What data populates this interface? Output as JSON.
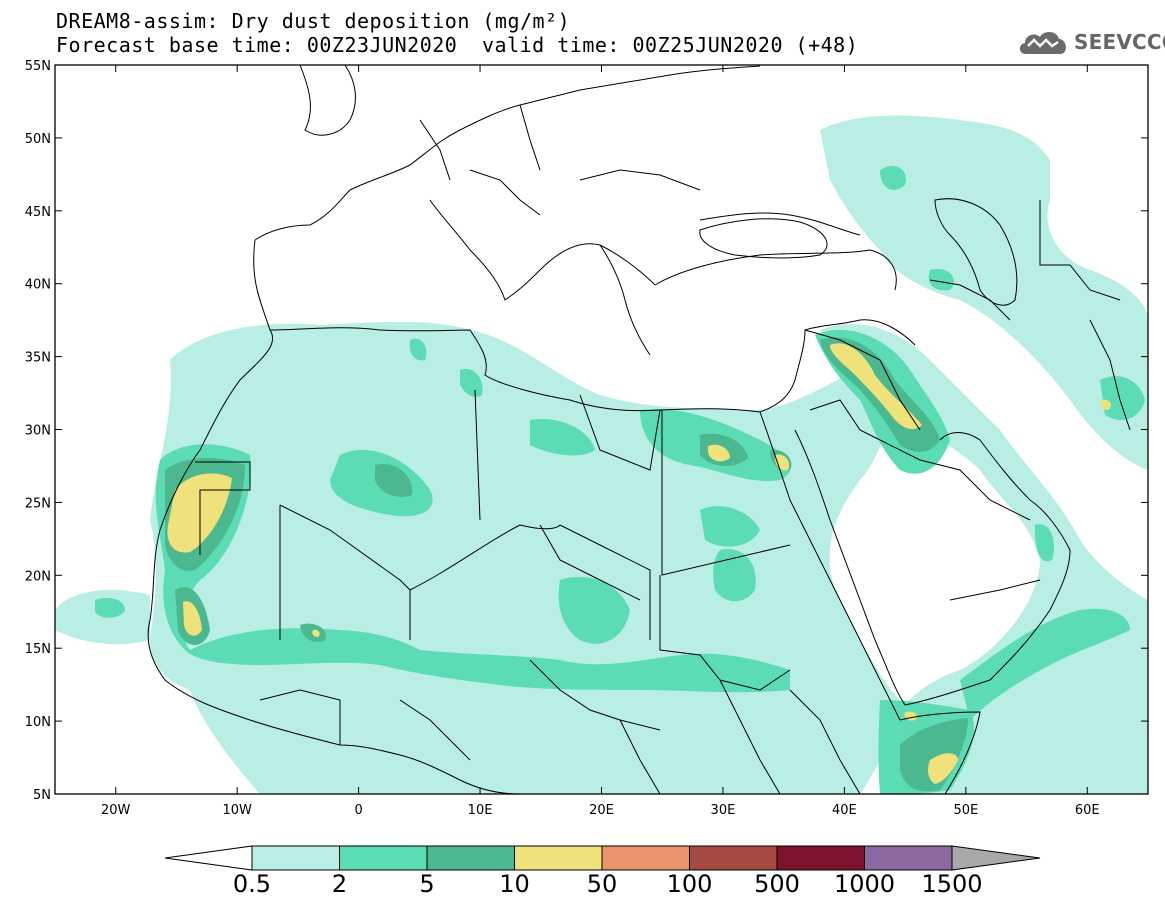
{
  "header": {
    "title_line1": "DREAM8-assim: Dry dust deposition (mg/m²)",
    "title_line2": "Forecast base time: 00Z23JUN2020",
    "valid_time": "valid time: 00Z25JUN2020 (+48)",
    "logo_text": "SEEVCCC",
    "logo_icon": "cloud-logo-icon"
  },
  "map": {
    "lat_range": [
      5,
      55
    ],
    "lon_range": [
      -25,
      65
    ],
    "lat_ticks": [
      {
        "value": 55,
        "label": "55N"
      },
      {
        "value": 50,
        "label": "50N"
      },
      {
        "value": 45,
        "label": "45N"
      },
      {
        "value": 40,
        "label": "40N"
      },
      {
        "value": 35,
        "label": "35N"
      },
      {
        "value": 30,
        "label": "30N"
      },
      {
        "value": 25,
        "label": "25N"
      },
      {
        "value": 20,
        "label": "20N"
      },
      {
        "value": 15,
        "label": "15N"
      },
      {
        "value": 10,
        "label": "10N"
      },
      {
        "value": 5,
        "label": "5N"
      }
    ],
    "lon_ticks": [
      {
        "value": -20,
        "label": "20W"
      },
      {
        "value": -10,
        "label": "10W"
      },
      {
        "value": 0,
        "label": "0"
      },
      {
        "value": 10,
        "label": "10E"
      },
      {
        "value": 20,
        "label": "20E"
      },
      {
        "value": 30,
        "label": "30E"
      },
      {
        "value": 40,
        "label": "40E"
      },
      {
        "value": 50,
        "label": "50E"
      },
      {
        "value": 60,
        "label": "60E"
      }
    ],
    "level_colors": {
      "l1": "#b8eee4",
      "l2": "#5cdcb4",
      "l3": "#4cb890",
      "l4": "#f0e27a",
      "l5": "#e9946a",
      "l6": "#a44a40",
      "l7": "#7c1430",
      "l8": "#8a6aa0",
      "over": "#a8a8a8"
    }
  },
  "colorbar": {
    "bins": [
      {
        "color": "#b8eee4"
      },
      {
        "color": "#5cdcb4"
      },
      {
        "color": "#4cb890"
      },
      {
        "color": "#f0e27a"
      },
      {
        "color": "#e9946a"
      },
      {
        "color": "#a44a40"
      },
      {
        "color": "#7c1430"
      },
      {
        "color": "#8a6aa0"
      }
    ],
    "under_color": "#ffffff",
    "over_color": "#a8a8a8",
    "labels": [
      "0.5",
      "2",
      "5",
      "10",
      "50",
      "100",
      "500",
      "1000",
      "1500"
    ]
  }
}
